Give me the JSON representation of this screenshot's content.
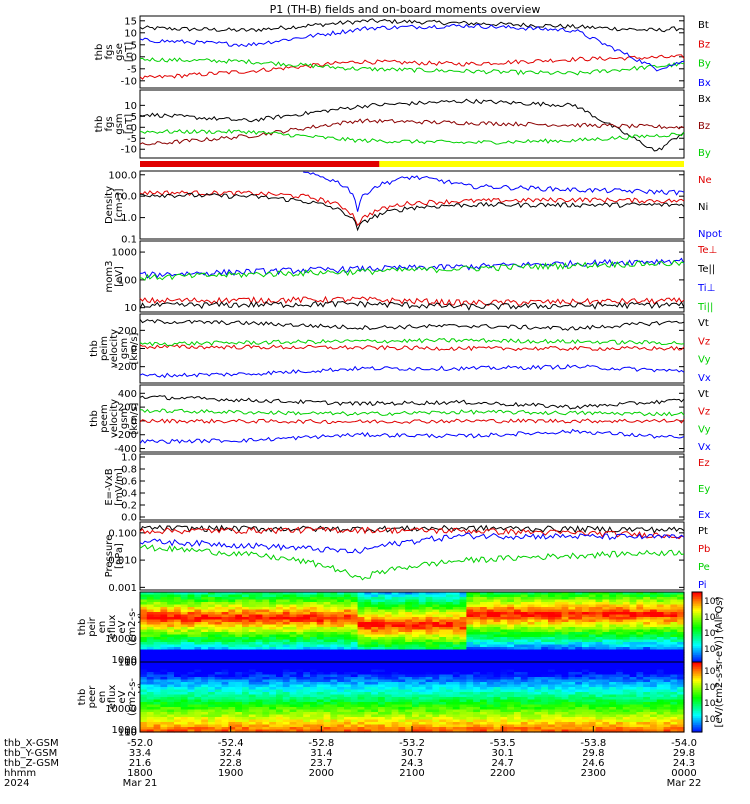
{
  "title": "P1 (TH-B) fields and on-board moments overview",
  "colors": {
    "black": "#000000",
    "red": "#e00000",
    "green": "#00d000",
    "blue": "#0000ff",
    "dark_red": "#8b0000",
    "yellow": "#ffff00"
  },
  "status_bar": {
    "segments": [
      {
        "start": 0.0,
        "end": 0.44,
        "color": "#e00000"
      },
      {
        "start": 0.44,
        "end": 1.0,
        "color": "#ffff00"
      }
    ]
  },
  "chart_data": [
    {
      "id": "fgs-gse",
      "type": "line",
      "ylabel": [
        "thb",
        "fgs",
        "gse",
        "[nT]"
      ],
      "yticks": [
        -10,
        -5,
        0,
        5,
        10,
        15
      ],
      "ylim": [
        -13,
        17
      ],
      "series": [
        {
          "name": "Bt",
          "color": "#000000",
          "points": [
            [
              0,
              12
            ],
            [
              0.2,
              11
            ],
            [
              0.42,
              15
            ],
            [
              0.6,
              14
            ],
            [
              0.75,
              13
            ],
            [
              0.95,
              11
            ],
            [
              1,
              12
            ]
          ]
        },
        {
          "name": "Bz",
          "color": "#e00000",
          "points": [
            [
              0,
              -9
            ],
            [
              0.2,
              -6
            ],
            [
              0.4,
              -2
            ],
            [
              0.6,
              -3
            ],
            [
              0.8,
              -1
            ],
            [
              1,
              0
            ]
          ]
        },
        {
          "name": "By",
          "color": "#00d000",
          "points": [
            [
              0,
              -1
            ],
            [
              0.2,
              -2
            ],
            [
              0.4,
              -5
            ],
            [
              0.6,
              -6
            ],
            [
              0.8,
              -7
            ],
            [
              1,
              -3
            ]
          ]
        },
        {
          "name": "Bx",
          "color": "#0000ff",
          "points": [
            [
              0,
              7
            ],
            [
              0.2,
              5
            ],
            [
              0.42,
              12
            ],
            [
              0.6,
              13
            ],
            [
              0.8,
              11
            ],
            [
              0.95,
              -5
            ],
            [
              1,
              -2
            ]
          ]
        }
      ]
    },
    {
      "id": "fgs-gsm",
      "type": "line",
      "ylabel": [
        "thb",
        "fgs",
        "gsm",
        "[nT]"
      ],
      "yticks": [
        -10,
        -5,
        0,
        5,
        10
      ],
      "ylim": [
        -14,
        17
      ],
      "series": [
        {
          "name": "Bx",
          "color": "#000000",
          "points": [
            [
              0,
              6
            ],
            [
              0.2,
              3
            ],
            [
              0.42,
              10
            ],
            [
              0.6,
              12
            ],
            [
              0.8,
              10
            ],
            [
              0.95,
              -11
            ],
            [
              1,
              -2
            ]
          ]
        },
        {
          "name": "Bz",
          "color": "#8b0000",
          "points": [
            [
              0,
              -8
            ],
            [
              0.2,
              -4
            ],
            [
              0.4,
              3
            ],
            [
              0.6,
              2
            ],
            [
              0.8,
              1
            ],
            [
              1,
              0
            ]
          ]
        },
        {
          "name": "By",
          "color": "#00d000",
          "points": [
            [
              0,
              -2
            ],
            [
              0.2,
              -2
            ],
            [
              0.4,
              -6
            ],
            [
              0.6,
              -7
            ],
            [
              0.8,
              -6
            ],
            [
              1,
              -3
            ]
          ]
        }
      ]
    },
    {
      "id": "density",
      "type": "line",
      "log": true,
      "ylabel": [
        "Density",
        "[cm-3]"
      ],
      "yticks": [
        0.1,
        1.0,
        10.0,
        100.0
      ],
      "ylim": [
        0.1,
        150
      ],
      "series": [
        {
          "name": "Ne",
          "color": "#e00000",
          "points": [
            [
              0,
              15
            ],
            [
              0.2,
              14
            ],
            [
              0.3,
              10
            ],
            [
              0.4,
              0.5
            ],
            [
              0.5,
              5
            ],
            [
              0.6,
              6
            ],
            [
              0.8,
              7
            ],
            [
              1,
              6
            ]
          ]
        },
        {
          "name": "Ni",
          "color": "#000000",
          "points": [
            [
              0,
              12
            ],
            [
              0.2,
              10
            ],
            [
              0.3,
              6
            ],
            [
              0.4,
              0.3
            ],
            [
              0.5,
              3
            ],
            [
              0.6,
              4
            ],
            [
              0.8,
              4
            ],
            [
              1,
              4
            ]
          ]
        },
        {
          "name": "Npot",
          "color": "#0000ff",
          "points": [
            [
              0.3,
              120
            ],
            [
              0.4,
              2
            ],
            [
              0.5,
              80
            ],
            [
              0.6,
              30
            ],
            [
              0.8,
              20
            ],
            [
              1,
              15
            ]
          ]
        }
      ]
    },
    {
      "id": "temperature",
      "type": "line",
      "log": true,
      "ylabel": [
        "mom3",
        "[eV]"
      ],
      "yticks": [
        10,
        100,
        1000
      ],
      "ylim": [
        7,
        2500
      ],
      "series": [
        {
          "name": "Te⊥",
          "color": "#e00000",
          "points": [
            [
              0,
              18
            ],
            [
              0.4,
              20
            ],
            [
              0.6,
              15
            ],
            [
              1,
              18
            ]
          ]
        },
        {
          "name": "Te||",
          "color": "#000000",
          "points": [
            [
              0,
              12
            ],
            [
              0.4,
              14
            ],
            [
              0.6,
              11
            ],
            [
              1,
              13
            ]
          ]
        },
        {
          "name": "Ti⊥",
          "color": "#0000ff",
          "points": [
            [
              0,
              150
            ],
            [
              0.4,
              250
            ],
            [
              0.6,
              300
            ],
            [
              0.9,
              450
            ],
            [
              1,
              500
            ]
          ]
        },
        {
          "name": "Ti||",
          "color": "#00d000",
          "points": [
            [
              0,
              120
            ],
            [
              0.4,
              200
            ],
            [
              0.6,
              260
            ],
            [
              0.9,
              380
            ],
            [
              1,
              400
            ]
          ]
        }
      ]
    },
    {
      "id": "peim-velocity",
      "type": "line",
      "ylabel": [
        "thb",
        "peim",
        "velocity",
        "gsm",
        "[km/s]"
      ],
      "yticks": [
        -200,
        0,
        200
      ],
      "ylim": [
        -380,
        380
      ],
      "series": [
        {
          "name": "Vt",
          "color": "#000000",
          "points": [
            [
              0,
              300
            ],
            [
              0.2,
              280
            ],
            [
              0.4,
              230
            ],
            [
              0.6,
              250
            ],
            [
              0.8,
              220
            ],
            [
              1,
              300
            ]
          ]
        },
        {
          "name": "Vz",
          "color": "#e00000",
          "points": [
            [
              0,
              20
            ],
            [
              0.4,
              10
            ],
            [
              0.6,
              0
            ],
            [
              1,
              0
            ]
          ]
        },
        {
          "name": "Vy",
          "color": "#00d000",
          "points": [
            [
              0,
              50
            ],
            [
              0.4,
              80
            ],
            [
              0.6,
              90
            ],
            [
              1,
              60
            ]
          ]
        },
        {
          "name": "Vx",
          "color": "#0000ff",
          "points": [
            [
              0,
              -300
            ],
            [
              0.2,
              -280
            ],
            [
              0.4,
              -220
            ],
            [
              0.6,
              -220
            ],
            [
              0.8,
              -200
            ],
            [
              1,
              -250
            ]
          ]
        }
      ]
    },
    {
      "id": "peem-velocity",
      "type": "line",
      "ylabel": [
        "thb",
        "peem",
        "velocity",
        "gsm",
        "[km/s]"
      ],
      "yticks": [
        -400,
        -200,
        0,
        200,
        400
      ],
      "ylim": [
        -450,
        520
      ],
      "series": [
        {
          "name": "Vt",
          "color": "#000000",
          "points": [
            [
              0,
              350
            ],
            [
              0.2,
              300
            ],
            [
              0.4,
              250
            ],
            [
              0.6,
              270
            ],
            [
              0.8,
              200
            ],
            [
              1,
              300
            ]
          ]
        },
        {
          "name": "Vz",
          "color": "#e00000",
          "points": [
            [
              0,
              0
            ],
            [
              0.4,
              -10
            ],
            [
              0.6,
              0
            ],
            [
              1,
              0
            ]
          ]
        },
        {
          "name": "Vy",
          "color": "#00d000",
          "points": [
            [
              0,
              150
            ],
            [
              0.4,
              100
            ],
            [
              0.6,
              130
            ],
            [
              1,
              100
            ]
          ]
        },
        {
          "name": "Vx",
          "color": "#0000ff",
          "points": [
            [
              0,
              -300
            ],
            [
              0.2,
              -280
            ],
            [
              0.4,
              -200
            ],
            [
              0.6,
              -220
            ],
            [
              0.8,
              -150
            ],
            [
              1,
              -250
            ]
          ]
        }
      ]
    },
    {
      "id": "electric-field",
      "type": "line",
      "ylabel": [
        "E=-VxB",
        "[mV/m]"
      ],
      "yticks": [
        0.0,
        0.2,
        0.4,
        0.6,
        0.8,
        1.0
      ],
      "ylim": [
        -0.05,
        1.05
      ],
      "series": [
        {
          "name": "Ez",
          "color": "#e00000",
          "points": []
        },
        {
          "name": "Ey",
          "color": "#00d000",
          "points": []
        },
        {
          "name": "Ex",
          "color": "#0000ff",
          "points": []
        }
      ]
    },
    {
      "id": "pressure",
      "type": "line",
      "log": true,
      "ylabel": [
        "Pressure",
        "[nPa]"
      ],
      "yticks": [
        0.001,
        0.01,
        0.1
      ],
      "ylim": [
        0.0008,
        0.25
      ],
      "series": [
        {
          "name": "Pt",
          "color": "#000000",
          "points": [
            [
              0,
              0.15
            ],
            [
              0.4,
              0.14
            ],
            [
              0.6,
              0.15
            ],
            [
              1,
              0.13
            ]
          ]
        },
        {
          "name": "Pb",
          "color": "#e00000",
          "points": [
            [
              0,
              0.12
            ],
            [
              0.4,
              0.13
            ],
            [
              0.6,
              0.12
            ],
            [
              1,
              0.08
            ]
          ]
        },
        {
          "name": "Pe",
          "color": "#00d000",
          "points": [
            [
              0,
              0.03
            ],
            [
              0.4,
              0.002
            ],
            [
              0.6,
              0.01
            ],
            [
              1,
              0.02
            ]
          ]
        },
        {
          "name": "Pi",
          "color": "#0000ff",
          "points": [
            [
              0,
              0.05
            ],
            [
              0.4,
              0.02
            ],
            [
              0.6,
              0.08
            ],
            [
              1,
              0.07
            ]
          ]
        }
      ]
    },
    {
      "id": "peir-spectrogram",
      "type": "heatmap",
      "ylabel": [
        "thb",
        "peir",
        "en",
        "eflux",
        "eV",
        "(cm2-s-",
        "sr-eV)"
      ],
      "yticks": [
        10,
        100,
        1000,
        10000
      ],
      "ylim": [
        5,
        30000
      ]
    },
    {
      "id": "peer-spectrogram",
      "type": "heatmap",
      "ylabel": [
        "thb",
        "peer",
        "en",
        "eflux",
        "eV",
        "(cm2-s-",
        "sr-eV)"
      ],
      "yticks": [
        10,
        100,
        1000,
        10000
      ],
      "ylim": [
        5,
        30000
      ]
    }
  ],
  "colorbar": {
    "ticks": [
      "10⁸",
      "10⁶",
      "10⁴",
      "10²",
      "10⁸",
      "10⁶",
      "10⁴",
      "10²"
    ],
    "label": "[eV/(cm2-s-sr-eV)] (All Qs)"
  },
  "xaxis": {
    "rows": [
      {
        "label": "thb_X-GSM",
        "values": [
          "-52.0",
          "-52.4",
          "-52.8",
          "-53.2",
          "-53.5",
          "-53.8",
          "-54.0"
        ]
      },
      {
        "label": "thb_Y-GSM",
        "values": [
          "33.4",
          "32.4",
          "31.4",
          "30.7",
          "30.1",
          "29.8",
          "29.8"
        ]
      },
      {
        "label": "thb_Z-GSM",
        "values": [
          "21.6",
          "22.8",
          "23.7",
          "24.3",
          "24.7",
          "24.6",
          "24.3"
        ]
      },
      {
        "label": "hhmm",
        "values": [
          "1800",
          "1900",
          "2000",
          "2100",
          "2200",
          "2300",
          "0000"
        ]
      },
      {
        "label": "2024",
        "values": [
          "Mar 21",
          "",
          "",
          "",
          "",
          "",
          "Mar 22"
        ]
      }
    ]
  }
}
